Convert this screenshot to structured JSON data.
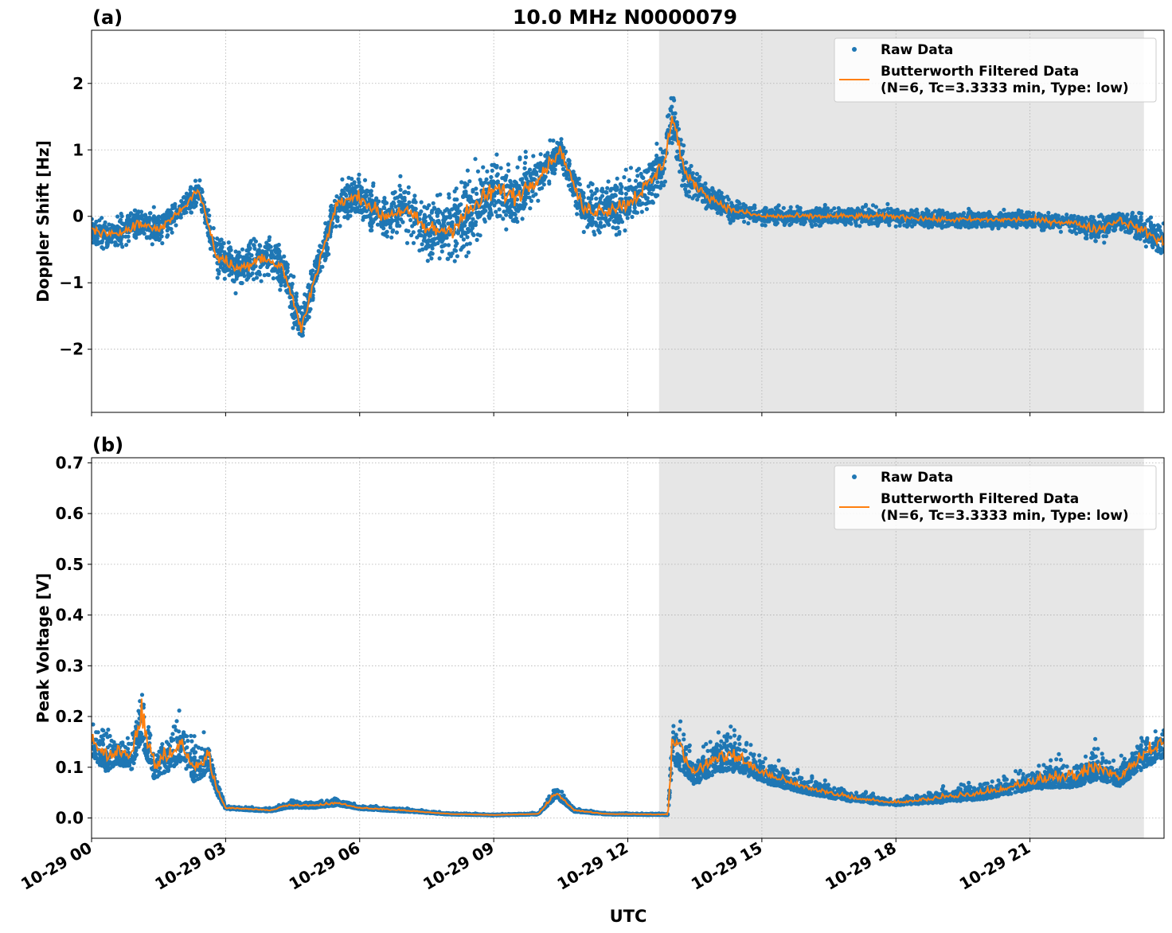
{
  "chart_data": [
    {
      "type": "scatter",
      "panel_label": "(a)",
      "title": "10.0 MHz N0000079",
      "ylabel": "Doppler Shift [Hz]",
      "xlabel": "",
      "xlim": [
        0,
        24
      ],
      "ylim": [
        -2.95,
        2.8
      ],
      "yticks": [
        -2,
        -1,
        0,
        1,
        2
      ],
      "yticklabels": [
        "−2",
        "−1",
        "0",
        "1",
        "2"
      ],
      "grid": true,
      "legend": {
        "placement": "top-right",
        "entries": [
          {
            "label": "Raw Data",
            "marker": "dot"
          },
          {
            "label": "Butterworth Filtered Data\n(N=6, Tc=3.3333 min, Type: low)",
            "marker": "line"
          }
        ]
      },
      "shaded_interval_hours": [
        12.7,
        23.55
      ],
      "series": [
        {
          "name": "Raw Data",
          "kind": "scatter",
          "color": "#1f77b4",
          "x_hours": [
            0.0,
            0.5,
            1.0,
            1.5,
            2.0,
            2.4,
            2.8,
            3.3,
            3.8,
            4.3,
            4.7,
            5.0,
            5.5,
            6.0,
            6.5,
            7.0,
            7.5,
            8.0,
            8.5,
            9.0,
            9.5,
            10.0,
            10.5,
            11.0,
            11.5,
            12.0,
            12.5,
            12.8,
            13.0,
            13.3,
            13.8,
            14.3,
            15.0,
            16.0,
            17.0,
            18.0,
            19.0,
            20.0,
            21.0,
            22.0,
            22.5,
            23.0,
            23.5,
            24.0
          ],
          "y_center": [
            -0.2,
            -0.3,
            -0.1,
            -0.2,
            0.1,
            0.4,
            -0.6,
            -0.8,
            -0.6,
            -0.8,
            -1.7,
            -0.9,
            0.2,
            0.3,
            0.0,
            0.1,
            -0.2,
            -0.2,
            0.1,
            0.4,
            0.3,
            0.6,
            1.0,
            0.1,
            0.1,
            0.2,
            0.5,
            0.8,
            1.5,
            0.6,
            0.3,
            0.1,
            0.0,
            0.0,
            0.0,
            0.0,
            -0.05,
            -0.05,
            -0.05,
            -0.1,
            -0.2,
            -0.05,
            -0.2,
            -0.4
          ],
          "y_spread": [
            0.3,
            0.35,
            0.4,
            0.35,
            0.3,
            0.3,
            0.45,
            0.5,
            0.45,
            0.5,
            0.55,
            0.45,
            0.45,
            0.45,
            0.55,
            0.6,
            0.7,
            0.8,
            0.8,
            0.75,
            0.7,
            0.55,
            0.35,
            0.5,
            0.6,
            0.6,
            0.6,
            0.6,
            0.7,
            0.45,
            0.3,
            0.25,
            0.2,
            0.2,
            0.2,
            0.2,
            0.2,
            0.2,
            0.2,
            0.2,
            0.35,
            0.25,
            0.35,
            0.45
          ]
        },
        {
          "name": "Butterworth Filtered Data\n(N=6, Tc=3.3333 min, Type: low)",
          "kind": "line",
          "color": "#ff7f0e",
          "x_hours": [
            0.0,
            0.5,
            1.0,
            1.5,
            2.0,
            2.4,
            2.8,
            3.3,
            3.8,
            4.3,
            4.7,
            5.0,
            5.5,
            6.0,
            6.5,
            7.0,
            7.5,
            8.0,
            8.5,
            9.0,
            9.5,
            10.0,
            10.5,
            11.0,
            11.5,
            12.0,
            12.5,
            12.8,
            13.0,
            13.3,
            13.8,
            14.3,
            15.0,
            16.0,
            17.0,
            18.0,
            19.0,
            20.0,
            21.0,
            22.0,
            22.5,
            23.0,
            23.5,
            24.0
          ],
          "y": [
            -0.2,
            -0.3,
            -0.1,
            -0.2,
            0.1,
            0.4,
            -0.6,
            -0.8,
            -0.6,
            -0.8,
            -1.7,
            -0.9,
            0.2,
            0.3,
            0.0,
            0.1,
            -0.2,
            -0.2,
            0.1,
            0.4,
            0.3,
            0.6,
            1.0,
            0.1,
            0.1,
            0.2,
            0.5,
            0.8,
            1.5,
            0.6,
            0.3,
            0.1,
            0.0,
            0.0,
            0.0,
            0.0,
            -0.05,
            -0.05,
            -0.05,
            -0.1,
            -0.2,
            -0.05,
            -0.2,
            -0.4
          ]
        }
      ]
    },
    {
      "type": "scatter",
      "panel_label": "(b)",
      "title": "",
      "ylabel": "Peak Voltage [V]",
      "xlabel": "UTC",
      "xlim": [
        0,
        24
      ],
      "ylim": [
        -0.04,
        0.71
      ],
      "yticks": [
        0.0,
        0.1,
        0.2,
        0.3,
        0.4,
        0.5,
        0.6,
        0.7
      ],
      "yticklabels": [
        "0.0",
        "0.1",
        "0.2",
        "0.3",
        "0.4",
        "0.5",
        "0.6",
        "0.7"
      ],
      "xticks_hours": [
        0,
        3,
        6,
        9,
        12,
        15,
        18,
        21
      ],
      "xticklabels": [
        "10-29 00",
        "10-29 03",
        "10-29 06",
        "10-29 09",
        "10-29 12",
        "10-29 15",
        "10-29 18",
        "10-29 21"
      ],
      "grid": true,
      "legend": {
        "placement": "top-right",
        "entries": [
          {
            "label": "Raw Data",
            "marker": "dot"
          },
          {
            "label": "Butterworth Filtered Data\n(N=6, Tc=3.3333 min, Type: low)",
            "marker": "line"
          }
        ]
      },
      "shaded_interval_hours": [
        12.7,
        23.55
      ],
      "series": [
        {
          "name": "Raw Data",
          "kind": "scatter",
          "color": "#1f77b4",
          "x_hours": [
            0.0,
            0.3,
            0.6,
            0.9,
            1.1,
            1.4,
            1.7,
            2.0,
            2.3,
            2.6,
            2.8,
            3.0,
            4.0,
            4.4,
            5.0,
            5.5,
            6.0,
            7.0,
            8.0,
            9.0,
            10.0,
            10.4,
            10.8,
            11.5,
            12.5,
            12.9,
            13.0,
            13.5,
            14.0,
            14.5,
            15.0,
            16.0,
            17.0,
            18.0,
            19.0,
            20.0,
            21.0,
            21.5,
            22.0,
            22.5,
            23.0,
            23.5,
            24.0
          ],
          "y_center": [
            0.15,
            0.12,
            0.13,
            0.12,
            0.2,
            0.1,
            0.12,
            0.15,
            0.1,
            0.12,
            0.06,
            0.02,
            0.015,
            0.025,
            0.025,
            0.03,
            0.02,
            0.015,
            0.008,
            0.006,
            0.008,
            0.05,
            0.015,
            0.008,
            0.007,
            0.007,
            0.15,
            0.09,
            0.12,
            0.12,
            0.09,
            0.06,
            0.04,
            0.03,
            0.04,
            0.05,
            0.07,
            0.08,
            0.08,
            0.1,
            0.08,
            0.12,
            0.15
          ],
          "y_spread": [
            0.12,
            0.12,
            0.1,
            0.1,
            0.2,
            0.1,
            0.12,
            0.15,
            0.12,
            0.12,
            0.05,
            0.01,
            0.01,
            0.02,
            0.02,
            0.02,
            0.01,
            0.01,
            0.004,
            0.003,
            0.004,
            0.04,
            0.01,
            0.004,
            0.004,
            0.004,
            0.16,
            0.1,
            0.12,
            0.12,
            0.08,
            0.05,
            0.03,
            0.02,
            0.04,
            0.05,
            0.06,
            0.08,
            0.08,
            0.1,
            0.07,
            0.1,
            0.12
          ]
        },
        {
          "name": "Butterworth Filtered Data\n(N=6, Tc=3.3333 min, Type: low)",
          "kind": "line",
          "color": "#ff7f0e",
          "x_hours": [
            0.0,
            0.3,
            0.6,
            0.9,
            1.1,
            1.4,
            1.7,
            2.0,
            2.3,
            2.6,
            2.8,
            3.0,
            4.0,
            4.4,
            5.0,
            5.5,
            6.0,
            7.0,
            8.0,
            9.0,
            10.0,
            10.4,
            10.8,
            11.5,
            12.5,
            12.9,
            13.0,
            13.5,
            14.0,
            14.5,
            15.0,
            16.0,
            17.0,
            18.0,
            19.0,
            20.0,
            21.0,
            21.5,
            22.0,
            22.5,
            23.0,
            23.5,
            24.0
          ],
          "y": [
            0.15,
            0.12,
            0.13,
            0.12,
            0.2,
            0.1,
            0.12,
            0.15,
            0.1,
            0.12,
            0.06,
            0.02,
            0.015,
            0.025,
            0.025,
            0.03,
            0.02,
            0.015,
            0.008,
            0.006,
            0.008,
            0.05,
            0.015,
            0.008,
            0.007,
            0.007,
            0.15,
            0.09,
            0.12,
            0.12,
            0.09,
            0.06,
            0.04,
            0.03,
            0.04,
            0.05,
            0.07,
            0.08,
            0.08,
            0.1,
            0.08,
            0.12,
            0.15
          ]
        }
      ]
    }
  ]
}
